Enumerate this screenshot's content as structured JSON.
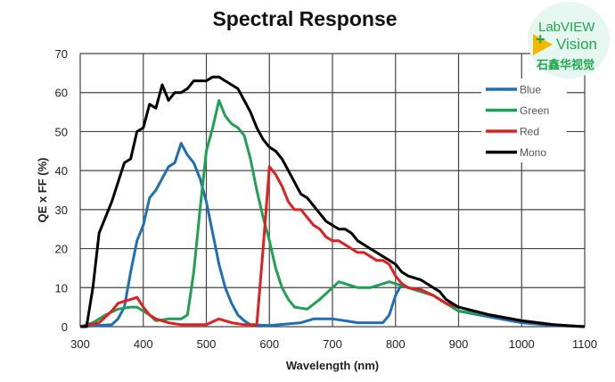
{
  "chart_data": {
    "type": "line",
    "title": "Spectral Response",
    "xlabel": "Wavelength (nm)",
    "ylabel": "QE x FF (%)",
    "xlim": [
      300,
      1100
    ],
    "ylim": [
      0,
      70
    ],
    "xticks": [
      300,
      400,
      500,
      600,
      700,
      800,
      900,
      1000,
      1100
    ],
    "yticks": [
      0,
      10,
      20,
      30,
      40,
      50,
      60,
      70
    ],
    "grid": true,
    "legend_position": "top-right",
    "series": [
      {
        "name": "Blue",
        "color": "#1f6fb5",
        "x": [
          300,
          350,
          360,
          370,
          380,
          390,
          400,
          410,
          420,
          430,
          440,
          450,
          460,
          470,
          480,
          490,
          500,
          510,
          520,
          530,
          540,
          550,
          560,
          570,
          600,
          650,
          670,
          700,
          720,
          740,
          760,
          780,
          790,
          800,
          810,
          820,
          840,
          860,
          880,
          900,
          950,
          1000,
          1050,
          1100
        ],
        "y": [
          0,
          0.5,
          2,
          5,
          14,
          22,
          26,
          33,
          35,
          38,
          41,
          42,
          47,
          44,
          42,
          38,
          32,
          24,
          16,
          10,
          6,
          3,
          1.5,
          0.5,
          0.3,
          1,
          2,
          2,
          1.5,
          1,
          1,
          1,
          3,
          8,
          11,
          10,
          9,
          8,
          6,
          4,
          2.5,
          1,
          0.3,
          0
        ]
      },
      {
        "name": "Green",
        "color": "#1fa052",
        "x": [
          300,
          320,
          340,
          360,
          380,
          390,
          400,
          410,
          420,
          440,
          460,
          470,
          480,
          490,
          500,
          510,
          520,
          530,
          540,
          550,
          560,
          570,
          580,
          590,
          600,
          610,
          620,
          630,
          640,
          660,
          680,
          700,
          710,
          720,
          740,
          760,
          780,
          790,
          800,
          820,
          840,
          860,
          880,
          900,
          950,
          1000,
          1050,
          1100
        ],
        "y": [
          0,
          1,
          3,
          4.5,
          5,
          5,
          4,
          3,
          1.5,
          2,
          2,
          3,
          14,
          30,
          45,
          51,
          58,
          54,
          52,
          51,
          49,
          43,
          35,
          28,
          22,
          15,
          10,
          7,
          5,
          4.5,
          7,
          10,
          11.5,
          11,
          10,
          10,
          11,
          11.5,
          11,
          10,
          9,
          8,
          6,
          4,
          3,
          1.5,
          0.5,
          0
        ]
      },
      {
        "name": "Red",
        "color": "#e02020",
        "x": [
          300,
          330,
          350,
          360,
          370,
          380,
          390,
          400,
          410,
          420,
          440,
          460,
          500,
          520,
          540,
          560,
          580,
          590,
          600,
          610,
          620,
          630,
          640,
          650,
          660,
          670,
          680,
          690,
          700,
          710,
          720,
          730,
          740,
          750,
          760,
          770,
          780,
          790,
          800,
          810,
          820,
          840,
          860,
          880,
          900,
          950,
          1000,
          1050,
          1100
        ],
        "y": [
          0,
          1,
          4,
          6,
          6.5,
          7,
          7.5,
          5,
          3,
          2,
          1,
          0.5,
          0.5,
          2,
          1,
          0.5,
          0.5,
          20,
          41,
          39,
          36,
          32,
          30,
          30,
          28,
          26,
          25,
          23,
          22,
          22,
          21,
          20,
          19,
          19,
          18,
          17,
          17,
          16,
          13,
          11,
          10,
          9.5,
          8,
          6,
          5,
          3,
          1.5,
          0.5,
          0
        ]
      },
      {
        "name": "Mono",
        "color": "#000000",
        "x": [
          300,
          310,
          320,
          330,
          340,
          350,
          360,
          370,
          380,
          390,
          400,
          410,
          420,
          430,
          440,
          450,
          460,
          470,
          480,
          490,
          500,
          510,
          520,
          530,
          540,
          550,
          560,
          570,
          580,
          590,
          600,
          610,
          620,
          630,
          640,
          650,
          660,
          670,
          680,
          690,
          700,
          710,
          720,
          730,
          740,
          750,
          760,
          770,
          780,
          790,
          800,
          810,
          820,
          830,
          840,
          850,
          860,
          870,
          880,
          890,
          900,
          950,
          1000,
          1050,
          1100
        ],
        "y": [
          0,
          0,
          10,
          24,
          28,
          32,
          37,
          42,
          43,
          50,
          51,
          57,
          56,
          62,
          58,
          60,
          60,
          61,
          63,
          63,
          63,
          64,
          64,
          63,
          62,
          61,
          58,
          55,
          51,
          48,
          46,
          45,
          43,
          40,
          37,
          34,
          33,
          31,
          29,
          27,
          26,
          25,
          25,
          24,
          22,
          21,
          20,
          19,
          18,
          17,
          16,
          14,
          13,
          12.5,
          12,
          11,
          10,
          9,
          7,
          6,
          5,
          3,
          1.5,
          0.5,
          0
        ]
      }
    ]
  },
  "logo": {
    "line1": "LabVIEW",
    "line2": "Vision",
    "line3": "石鑫华视觉"
  }
}
